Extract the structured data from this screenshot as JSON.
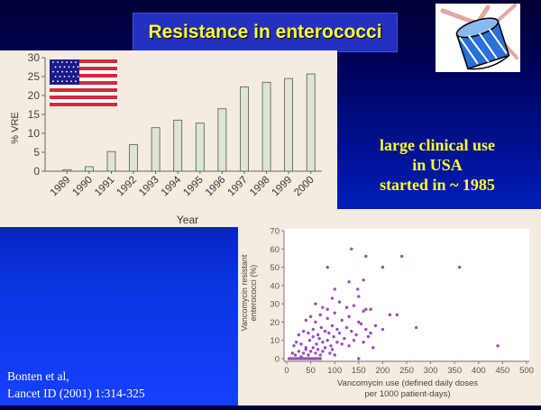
{
  "slide": {
    "title": "Resistance in enterococci",
    "callout": [
      "large clinical use",
      "in USA",
      "started in ~ 1985"
    ],
    "reference": [
      "Bonten et al,",
      "Lancet ID (2001) 1:314-325"
    ]
  },
  "icons": {
    "flag": "usa-flag-icon",
    "drum": "drum-clipart-icon"
  },
  "colors": {
    "bar": "#dde6d4",
    "point": "#9a4db8",
    "title_text": "#ffff33"
  },
  "chart_data": [
    {
      "type": "bar",
      "categories": [
        "1989",
        "1990",
        "1991",
        "1992",
        "1993",
        "1994",
        "1995",
        "1996",
        "1997",
        "1998",
        "1999",
        "2000"
      ],
      "values": [
        0.4,
        1.2,
        5.2,
        7.0,
        11.5,
        13.5,
        12.7,
        16.5,
        22.3,
        23.5,
        24.5,
        25.7
      ],
      "xlabel": "Year",
      "ylabel": "% VRE",
      "ylim": [
        0,
        30
      ],
      "yticks": [
        0,
        5,
        10,
        15,
        20,
        25,
        30
      ],
      "grid": false
    },
    {
      "type": "scatter",
      "xlabel": "Vancomycin use (defined daily doses per 1000 patient-days)",
      "xlabel_lines": [
        "Vancomycin use (defined daily doses",
        "per 1000 patient-days)"
      ],
      "ylabel": "Vancomycin resistant enterococci (%)",
      "ylabel_lines": [
        "Vancomycin resistant",
        "enterococci (%)"
      ],
      "xlim": [
        0,
        500
      ],
      "ylim": [
        0,
        70
      ],
      "xticks": [
        0,
        50,
        100,
        150,
        200,
        250,
        300,
        350,
        400,
        450,
        500
      ],
      "yticks": [
        0,
        10,
        20,
        30,
        40,
        50,
        60,
        70
      ],
      "grid": false,
      "points": [
        [
          5,
          0
        ],
        [
          10,
          0
        ],
        [
          15,
          0
        ],
        [
          20,
          0
        ],
        [
          25,
          0
        ],
        [
          30,
          0
        ],
        [
          35,
          0
        ],
        [
          40,
          0
        ],
        [
          45,
          0
        ],
        [
          50,
          0
        ],
        [
          55,
          0
        ],
        [
          60,
          0
        ],
        [
          65,
          0
        ],
        [
          70,
          0
        ],
        [
          150,
          0
        ],
        [
          12,
          3
        ],
        [
          18,
          2
        ],
        [
          25,
          4
        ],
        [
          30,
          1
        ],
        [
          35,
          3
        ],
        [
          40,
          5
        ],
        [
          45,
          2
        ],
        [
          50,
          4
        ],
        [
          55,
          6
        ],
        [
          60,
          3
        ],
        [
          65,
          5
        ],
        [
          70,
          2
        ],
        [
          75,
          4
        ],
        [
          80,
          6
        ],
        [
          90,
          3
        ],
        [
          95,
          5
        ],
        [
          100,
          2
        ],
        [
          15,
          7
        ],
        [
          20,
          9
        ],
        [
          30,
          8
        ],
        [
          40,
          6
        ],
        [
          48,
          10
        ],
        [
          55,
          12
        ],
        [
          62,
          8
        ],
        [
          68,
          11
        ],
        [
          75,
          9
        ],
        [
          85,
          10
        ],
        [
          92,
          7
        ],
        [
          98,
          12
        ],
        [
          105,
          9
        ],
        [
          115,
          8
        ],
        [
          120,
          11
        ],
        [
          130,
          7
        ],
        [
          140,
          10
        ],
        [
          160,
          9
        ],
        [
          170,
          12
        ],
        [
          180,
          6
        ],
        [
          25,
          13
        ],
        [
          35,
          15
        ],
        [
          45,
          14
        ],
        [
          55,
          16
        ],
        [
          65,
          13
        ],
        [
          72,
          17
        ],
        [
          80,
          15
        ],
        [
          88,
          14
        ],
        [
          95,
          18
        ],
        [
          105,
          16
        ],
        [
          110,
          14
        ],
        [
          125,
          17
        ],
        [
          135,
          15
        ],
        [
          145,
          13
        ],
        [
          155,
          19
        ],
        [
          165,
          16
        ],
        [
          175,
          14
        ],
        [
          185,
          18
        ],
        [
          200,
          16
        ],
        [
          270,
          17
        ],
        [
          40,
          21
        ],
        [
          50,
          23
        ],
        [
          60,
          20
        ],
        [
          70,
          24
        ],
        [
          85,
          22
        ],
        [
          100,
          25
        ],
        [
          115,
          21
        ],
        [
          130,
          23
        ],
        [
          150,
          20
        ],
        [
          160,
          26
        ],
        [
          215,
          24
        ],
        [
          230,
          24
        ],
        [
          60,
          30
        ],
        [
          75,
          28
        ],
        [
          85,
          27
        ],
        [
          95,
          33
        ],
        [
          110,
          31
        ],
        [
          125,
          28
        ],
        [
          140,
          29
        ],
        [
          150,
          34
        ],
        [
          165,
          27
        ],
        [
          175,
          27
        ],
        [
          100,
          38
        ],
        [
          130,
          42
        ],
        [
          148,
          38
        ],
        [
          160,
          43
        ],
        [
          85,
          50
        ],
        [
          200,
          50
        ],
        [
          240,
          56
        ],
        [
          360,
          50
        ],
        [
          165,
          56
        ],
        [
          135,
          60
        ],
        [
          440,
          7
        ]
      ]
    }
  ]
}
